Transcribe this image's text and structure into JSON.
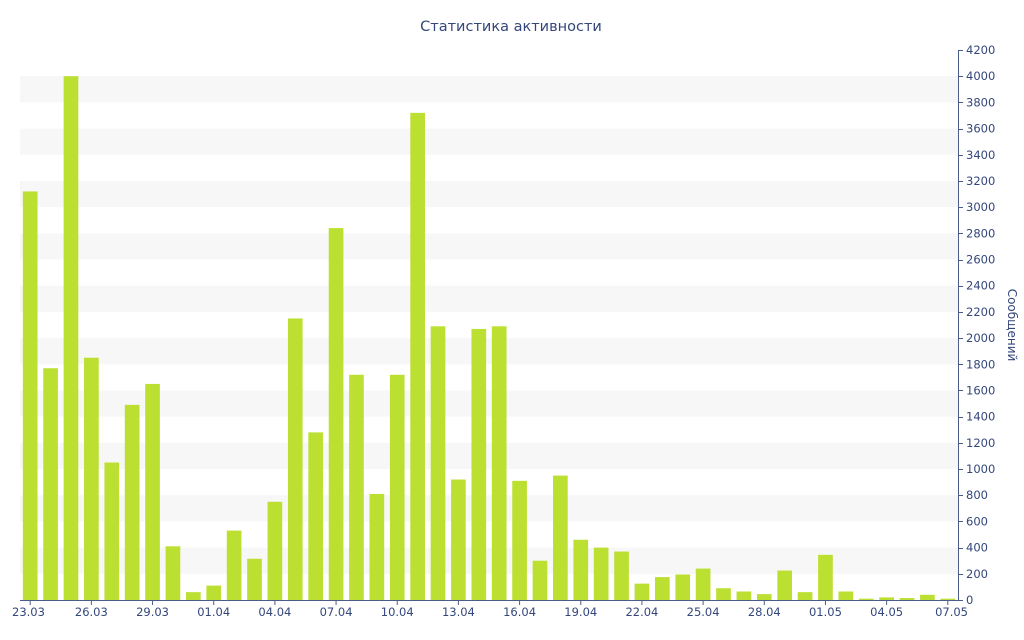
{
  "chart_data": {
    "type": "bar",
    "title": "Статистика активности",
    "xlabel": "",
    "ylabel": "Сообщений",
    "ylim": [
      0,
      4200
    ],
    "y_tick_step": 200,
    "y_axis_position": "right",
    "grid": "horizontal alternating bands",
    "legend": "none",
    "colors": {
      "bar": "#bce031",
      "axis": "#4c5c8a",
      "text": "#34477c",
      "band": "#f7f7f7"
    },
    "categories": [
      "23.03",
      "24.03",
      "25.03",
      "26.03",
      "27.03",
      "28.03",
      "29.03",
      "30.03",
      "31.03",
      "01.04",
      "02.04",
      "03.04",
      "04.04",
      "05.04",
      "06.04",
      "07.04",
      "08.04",
      "09.04",
      "10.04",
      "11.04",
      "12.04",
      "13.04",
      "14.04",
      "15.04",
      "16.04",
      "17.04",
      "18.04",
      "19.04",
      "20.04",
      "21.04",
      "22.04",
      "23.04",
      "24.04",
      "25.04",
      "26.04",
      "27.04",
      "28.04",
      "29.04",
      "30.04",
      "01.05",
      "02.05",
      "03.05",
      "04.05",
      "05.05",
      "06.05",
      "07.05"
    ],
    "x_tick_labels": [
      "23.03",
      "26.03",
      "29.03",
      "01.04",
      "04.04",
      "07.04",
      "10.04",
      "13.04",
      "16.04",
      "19.04",
      "22.04",
      "25.04",
      "28.04",
      "01.05",
      "04.05",
      "07.05"
    ],
    "values": [
      3120,
      1770,
      4000,
      1850,
      1050,
      1490,
      1650,
      410,
      60,
      110,
      530,
      315,
      750,
      2150,
      1280,
      2840,
      1720,
      810,
      1720,
      3720,
      2090,
      920,
      2070,
      2090,
      910,
      300,
      950,
      460,
      400,
      370,
      125,
      175,
      195,
      240,
      90,
      65,
      45,
      225,
      60,
      345,
      65,
      10,
      20,
      15,
      40,
      10
    ]
  }
}
